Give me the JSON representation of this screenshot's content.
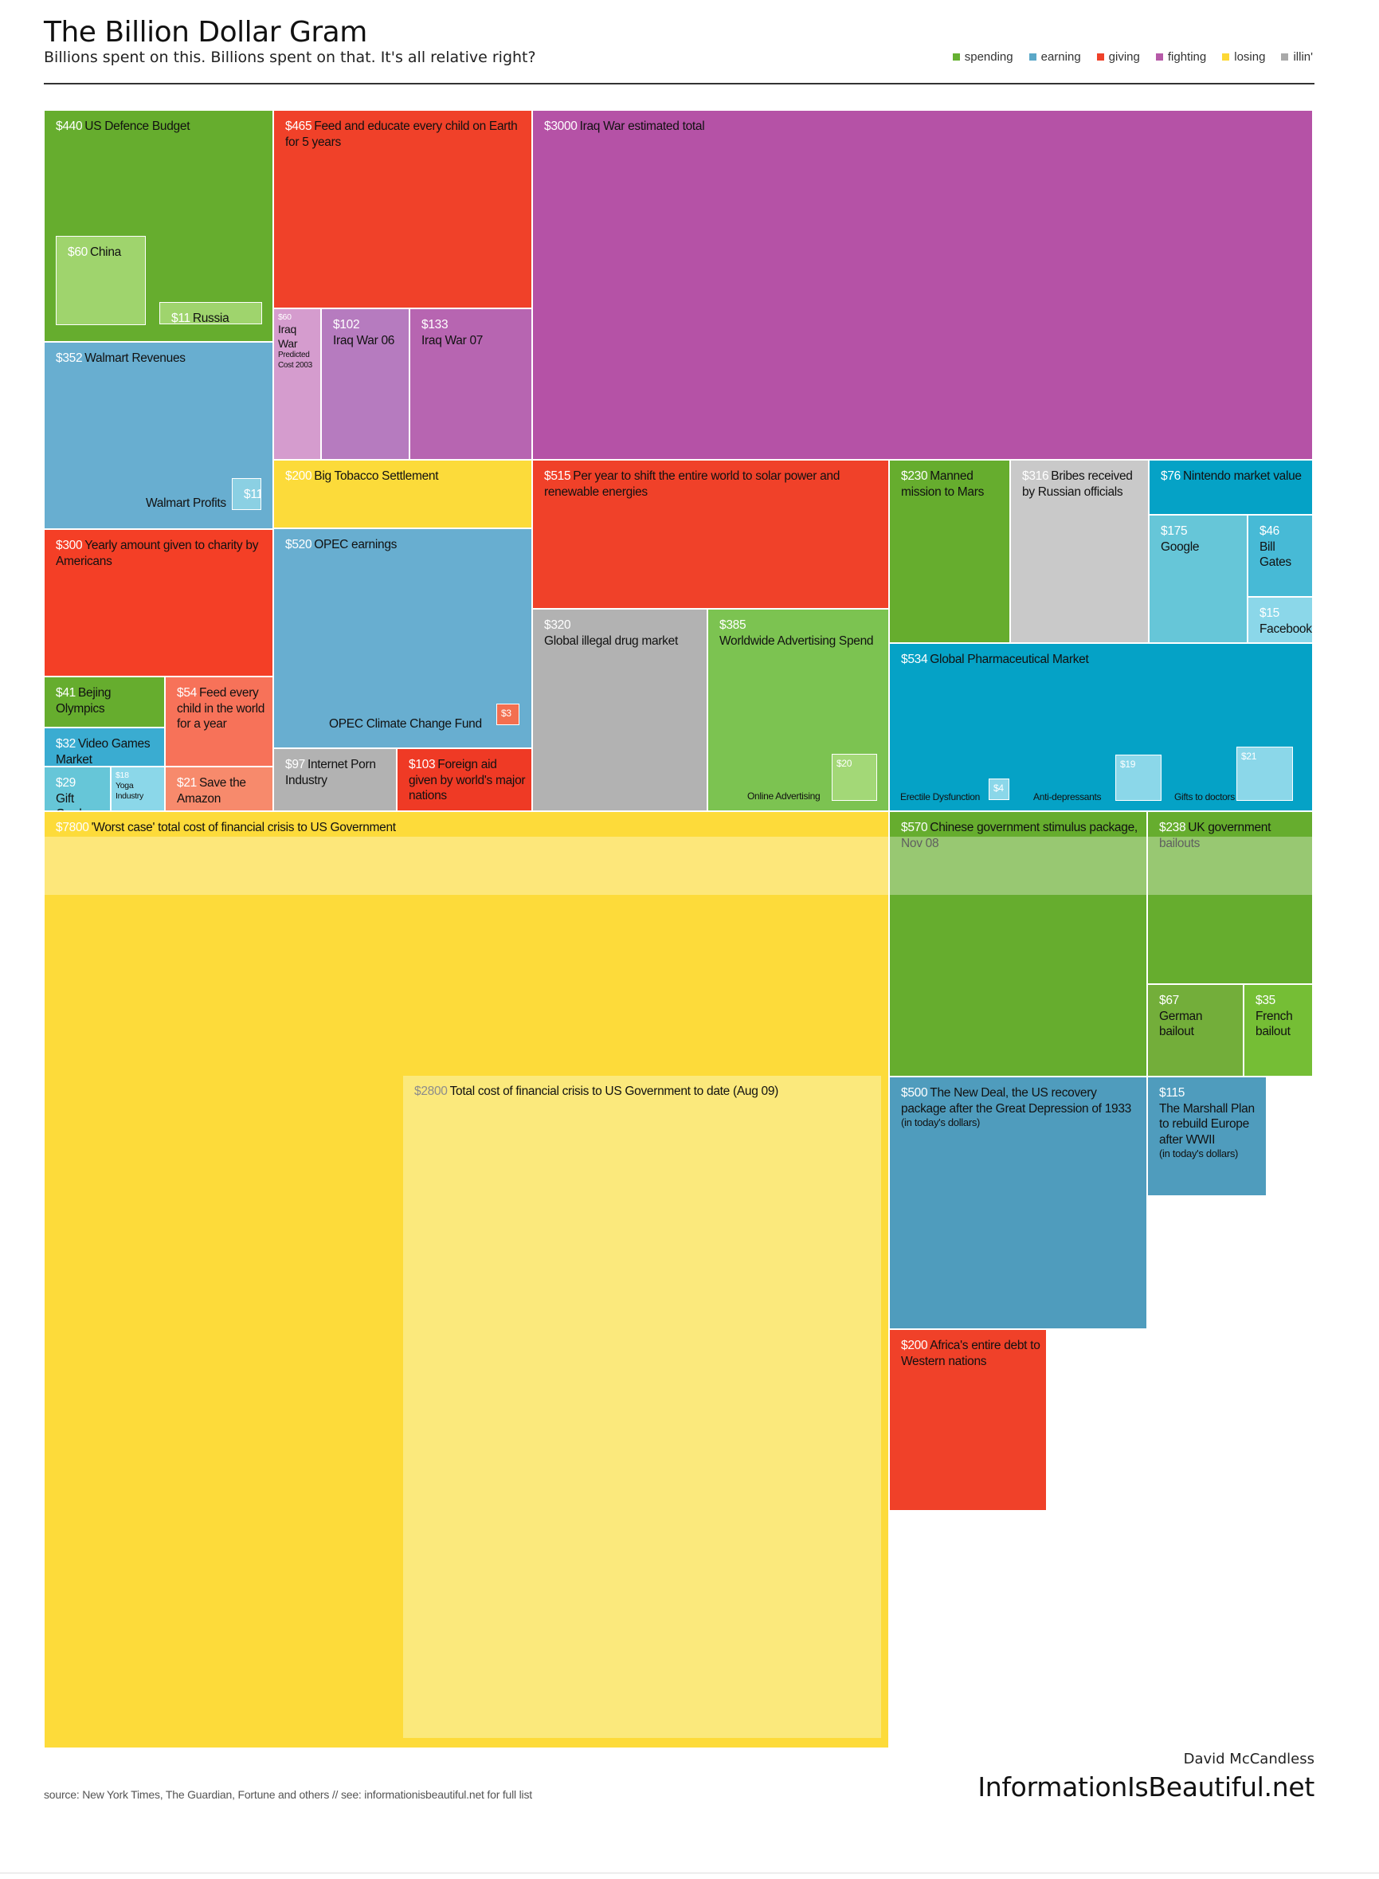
{
  "header": {
    "title": "The Billion Dollar Gram",
    "subtitle": "Billions spent on this. Billions spent on that. It's all relative right?"
  },
  "legend": [
    {
      "label": "spending",
      "color": "#66b132"
    },
    {
      "label": "earning",
      "color": "#5ba8c8"
    },
    {
      "label": "giving",
      "color": "#ef4129"
    },
    {
      "label": "fighting",
      "color": "#b65aa8"
    },
    {
      "label": "losing",
      "color": "#fdd835"
    },
    {
      "label": "illin'",
      "color": "#a9a9a9"
    }
  ],
  "footer": {
    "source": "source: New York Times, The Guardian, Fortune and others // see:  informationisbeautiful.net for full list",
    "author": "David McCandless",
    "site": "InformationIsBeautiful.net"
  },
  "chart_data": {
    "type": "treemap",
    "units": "$ billions",
    "items": [
      {
        "value": "$440",
        "label": "US Defence Budget",
        "category": "spending",
        "color": "#66ad2e"
      },
      {
        "value": "$60",
        "label": "China",
        "category": "spending",
        "color": "#9fd46d"
      },
      {
        "value": "$11",
        "label": "Russia",
        "category": "spending",
        "color": "#9fd46d"
      },
      {
        "value": "$465",
        "label": "Feed and educate every child on Earth for 5 years",
        "category": "giving",
        "color": "#f04129"
      },
      {
        "value": "$3000",
        "label": "Iraq War estimated total",
        "category": "fighting",
        "color": "#b552a6"
      },
      {
        "value": "$60",
        "label": "Iraq War",
        "note": "Predicted Cost 2003",
        "category": "fighting",
        "color": "#d59cce"
      },
      {
        "value": "$102",
        "label": "Iraq War 06",
        "category": "fighting",
        "color": "#b67bbf"
      },
      {
        "value": "$133",
        "label": "Iraq War 07",
        "category": "fighting",
        "color": "#b765b1"
      },
      {
        "value": "$352",
        "label": "Walmart Revenues",
        "category": "earning",
        "color": "#68aed0"
      },
      {
        "value": "$11",
        "label": "Walmart Profits",
        "category": "earning",
        "color": "#8bd0e3"
      },
      {
        "value": "$200",
        "label": "Big Tobacco Settlement",
        "category": "losing",
        "color": "#fcdb3a"
      },
      {
        "value": "$515",
        "label": "Per year to shift the entire world to solar power and renewable energies",
        "category": "giving",
        "color": "#f04129"
      },
      {
        "value": "$230",
        "label": "Manned mission to Mars",
        "category": "spending",
        "color": "#66ad2e"
      },
      {
        "value": "$316",
        "label": "Bribes received by Russian officials",
        "category": "illin'",
        "color": "#c9c9c9"
      },
      {
        "value": "$76",
        "label": "Nintendo market value",
        "category": "earning",
        "color": "#05a2c6"
      },
      {
        "value": "$175",
        "label": "Google",
        "category": "earning",
        "color": "#66c6d8"
      },
      {
        "value": "$46",
        "label": "Bill Gates",
        "category": "earning",
        "color": "#47bad6"
      },
      {
        "value": "$15",
        "label": "Facebook",
        "category": "earning",
        "color": "#8bd7e9"
      },
      {
        "value": "$300",
        "label": "Yearly amount given to charity by Americans",
        "category": "giving",
        "color": "#f43f26"
      },
      {
        "value": "$520",
        "label": "OPEC earnings",
        "category": "earning",
        "color": "#68aed0"
      },
      {
        "value": "$3",
        "label": "OPEC Climate Change Fund",
        "category": "giving",
        "color": "#f36f50"
      },
      {
        "value": "$320",
        "label": "Global illegal drug market",
        "category": "illin'",
        "color": "#b2b2b2"
      },
      {
        "value": "$385",
        "label": "Worldwide Advertising Spend",
        "category": "spending",
        "color": "#7cc351"
      },
      {
        "value": "$20",
        "label": "Online Advertising",
        "category": "spending",
        "color": "#a3d877"
      },
      {
        "value": "$534",
        "label": "Global Pharmaceutical Market",
        "category": "earning",
        "color": "#05a2c6"
      },
      {
        "value": "$4",
        "label": "Erectile Dysfunction",
        "category": "earning",
        "color": "#8bd7e9"
      },
      {
        "value": "$19",
        "label": "Anti-depressants",
        "category": "earning",
        "color": "#8bd7e9"
      },
      {
        "value": "$21",
        "label": "Gifts to doctors",
        "category": "earning",
        "color": "#8bd7e9"
      },
      {
        "value": "$41",
        "label": "Bejing Olympics",
        "category": "spending",
        "color": "#66ad2e"
      },
      {
        "value": "$54",
        "label": "Feed every child in the world for a year",
        "category": "giving",
        "color": "#f77259"
      },
      {
        "value": "$32",
        "label": "Video Games Market",
        "category": "earning",
        "color": "#3aacd1"
      },
      {
        "value": "$29",
        "label": "Gift Cards",
        "category": "earning",
        "color": "#66c6d8"
      },
      {
        "value": "$18",
        "label": "Yoga Industry",
        "category": "earning",
        "color": "#8bd7e9"
      },
      {
        "value": "$21",
        "label": "Save the Amazon",
        "category": "giving",
        "color": "#f78a6c"
      },
      {
        "value": "$97",
        "label": "Internet Porn Industry",
        "category": "illin'",
        "color": "#b2b2b2"
      },
      {
        "value": "$103",
        "label": "Foreign aid given by world's major nations",
        "category": "giving",
        "color": "#ef3a25"
      },
      {
        "value": "$7800",
        "label": "'Worst case' total cost of financial crisis to US Government",
        "category": "losing",
        "color": "#fddb3a"
      },
      {
        "value": "$2800",
        "label": "Total cost of financial crisis to US Government to date (Aug 09)",
        "category": "losing",
        "color": "#fbe97c"
      },
      {
        "value": "$570",
        "label": "Chinese government stimulus package, Nov 08",
        "category": "spending",
        "color": "#66ad2e"
      },
      {
        "value": "$238",
        "label": "UK government bailouts",
        "category": "spending",
        "color": "#66ad2e"
      },
      {
        "value": "$67",
        "label": "German bailout",
        "category": "spending",
        "color": "#73ae3a"
      },
      {
        "value": "$35",
        "label": "French bailout",
        "category": "spending",
        "color": "#75be35"
      },
      {
        "value": "$500",
        "label": "The New Deal, the US recovery package after the Great Depression of 1933",
        "note": "(in today's dollars)",
        "category": "earning",
        "color": "#4f9cbd"
      },
      {
        "value": "$115",
        "label": "The Marshall Plan to rebuild Europe after WWII",
        "note": "(in today's dollars)",
        "category": "earning",
        "color": "#4f9cbd"
      },
      {
        "value": "$200",
        "label": "Africa's entire debt to Western nations",
        "category": "giving",
        "color": "#f04129"
      }
    ]
  }
}
